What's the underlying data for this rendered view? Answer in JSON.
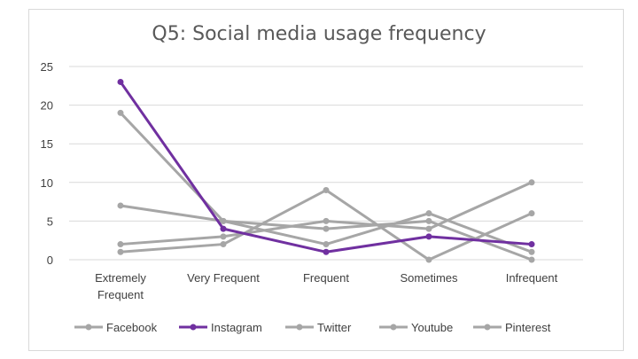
{
  "chart_data": {
    "type": "line",
    "title": "Q5: Social media usage frequency",
    "categories": [
      [
        "Extremely",
        "Frequent"
      ],
      [
        "Very Frequent"
      ],
      [
        "Frequent"
      ],
      [
        "Sometimes"
      ],
      [
        "Infrequent"
      ]
    ],
    "ylim": [
      0,
      25
    ],
    "yticks": [
      0,
      5,
      10,
      15,
      20,
      25
    ],
    "grid": true,
    "legend_position": "bottom",
    "series": [
      {
        "name": "Facebook",
        "color": "#a6a6a6",
        "values": [
          19,
          5,
          4,
          5,
          0
        ]
      },
      {
        "name": "Instagram",
        "color": "#7030a0",
        "values": [
          23,
          4,
          1,
          3,
          2
        ]
      },
      {
        "name": "Twitter",
        "color": "#a6a6a6",
        "values": [
          7,
          5,
          2,
          6,
          1
        ]
      },
      {
        "name": "Youtube",
        "color": "#a6a6a6",
        "values": [
          1,
          2,
          9,
          0,
          6
        ]
      },
      {
        "name": "Pinterest",
        "color": "#a6a6a6",
        "values": [
          2,
          3,
          5,
          4,
          10
        ]
      }
    ]
  }
}
